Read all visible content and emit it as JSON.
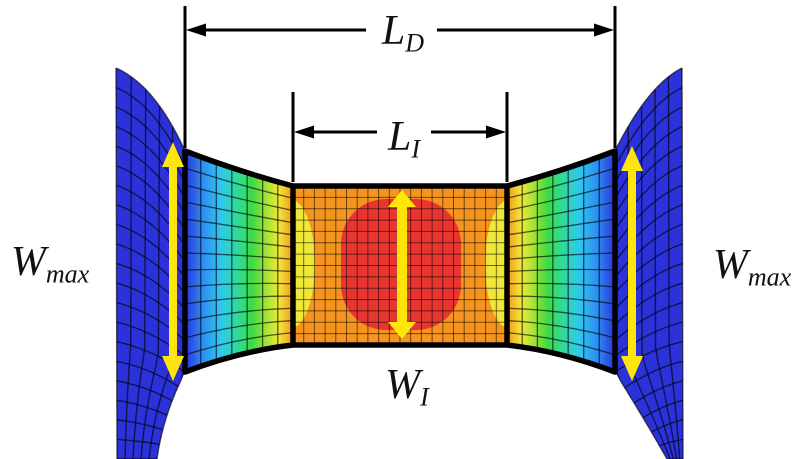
{
  "figure": {
    "kind": "finite-element-contour-figure-of-tensile-dogbone-specimen",
    "annotations": {
      "ld": {
        "main": "L",
        "sub": "D"
      },
      "li": {
        "main": "L",
        "sub": "I"
      },
      "wmax_left": {
        "main": "W",
        "sub": "max"
      },
      "wmax_right": {
        "main": "W",
        "sub": "max"
      },
      "wi": {
        "main": "W",
        "sub": "I"
      }
    },
    "colors": {
      "contour_blue": "#2B32D9",
      "contour_skyblue": "#2E8CF2",
      "contour_cyan": "#2FC8EF",
      "contour_teal": "#30D9A0",
      "contour_green": "#3BDB45",
      "contour_yellowgreen": "#A9E335",
      "contour_yellow": "#F0E838",
      "contour_orange": "#F5941E",
      "contour_red": "#E93530",
      "measure_arrow_yellow": "#FFE60A",
      "outline_black": "#000000",
      "background": "#FFFFFF"
    }
  }
}
